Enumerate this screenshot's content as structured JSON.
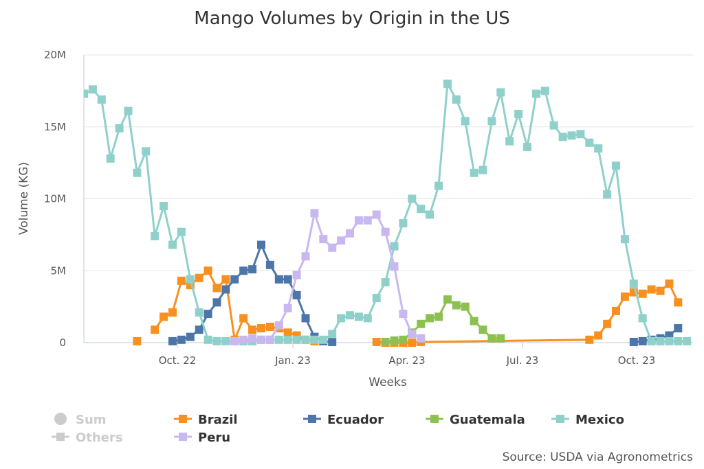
{
  "chart_data": {
    "type": "line",
    "title": "Mango Volumes by Origin in the US",
    "xlabel": "Weeks",
    "ylabel": "Volume (KG)",
    "ylim": [
      0,
      20000000
    ],
    "x_ticks": [
      "Oct. 22",
      "Jan. 23",
      "Apr. 23",
      "Jul. 23",
      "Oct. 23"
    ],
    "y_ticks": [
      "0",
      "5M",
      "10M",
      "15M",
      "20M"
    ],
    "grid": "horizontal",
    "legend_position": "bottom",
    "x_unit": "week index (week 0 = first week shown, Aug 2022)",
    "series": [
      {
        "name": "Brazil",
        "color": "#F7901E",
        "points": [
          [
            6,
            0.1
          ],
          [
            8,
            0.9
          ],
          [
            9,
            1.8
          ],
          [
            10,
            2.1
          ],
          [
            11,
            4.3
          ],
          [
            12,
            4.0
          ],
          [
            13,
            4.5
          ],
          [
            14,
            5.0
          ],
          [
            15,
            3.8
          ],
          [
            16,
            4.4
          ],
          [
            17,
            0.2
          ],
          [
            18,
            1.7
          ],
          [
            19,
            0.9
          ],
          [
            20,
            1.0
          ],
          [
            21,
            1.1
          ],
          [
            22,
            1.0
          ],
          [
            23,
            0.7
          ],
          [
            24,
            0.5
          ],
          [
            25,
            0.2
          ],
          [
            26,
            0.1
          ],
          [
            33,
            0.05
          ],
          [
            34,
            0.0
          ],
          [
            35,
            0.0
          ],
          [
            36,
            0.0
          ],
          [
            37,
            0.0
          ],
          [
            38,
            0.05
          ],
          [
            57,
            0.2
          ],
          [
            58,
            0.5
          ],
          [
            59,
            1.3
          ],
          [
            60,
            2.2
          ],
          [
            61,
            3.2
          ],
          [
            62,
            3.5
          ],
          [
            63,
            3.4
          ],
          [
            64,
            3.7
          ],
          [
            65,
            3.6
          ],
          [
            66,
            4.1
          ],
          [
            67,
            2.8
          ]
        ],
        "segments": [
          [
            0,
            0
          ],
          [
            1,
            19
          ],
          [
            20,
            36
          ]
        ]
      },
      {
        "name": "Ecuador",
        "color": "#4C76A8",
        "points": [
          [
            10,
            0.1
          ],
          [
            11,
            0.2
          ],
          [
            12,
            0.4
          ],
          [
            13,
            0.9
          ],
          [
            14,
            2.0
          ],
          [
            15,
            2.8
          ],
          [
            16,
            3.7
          ],
          [
            17,
            4.4
          ],
          [
            18,
            5.0
          ],
          [
            19,
            5.1
          ],
          [
            20,
            6.8
          ],
          [
            21,
            5.4
          ],
          [
            22,
            4.4
          ],
          [
            23,
            4.4
          ],
          [
            24,
            3.3
          ],
          [
            25,
            1.7
          ],
          [
            26,
            0.4
          ],
          [
            27,
            0.1
          ],
          [
            28,
            0.05
          ],
          [
            62,
            0.05
          ],
          [
            63,
            0.1
          ],
          [
            64,
            0.2
          ],
          [
            65,
            0.3
          ],
          [
            66,
            0.5
          ],
          [
            67,
            1.0
          ]
        ],
        "segments": [
          [
            0,
            18
          ],
          [
            19,
            24
          ]
        ]
      },
      {
        "name": "Guatemala",
        "color": "#8CC152",
        "points": [
          [
            34,
            0.05
          ],
          [
            35,
            0.15
          ],
          [
            36,
            0.2
          ],
          [
            37,
            0.7
          ],
          [
            38,
            1.3
          ],
          [
            39,
            1.7
          ],
          [
            40,
            1.8
          ],
          [
            41,
            3.0
          ],
          [
            42,
            2.6
          ],
          [
            43,
            2.5
          ],
          [
            44,
            1.5
          ],
          [
            45,
            0.9
          ],
          [
            46,
            0.3
          ],
          [
            47,
            0.3
          ]
        ],
        "segments": [
          [
            0,
            13
          ]
        ]
      },
      {
        "name": "Mexico",
        "color": "#8FD0CB",
        "points": [
          [
            0,
            17.3
          ],
          [
            1,
            17.6
          ],
          [
            2,
            16.9
          ],
          [
            3,
            12.8
          ],
          [
            4,
            14.9
          ],
          [
            5,
            16.1
          ],
          [
            6,
            11.8
          ],
          [
            7,
            13.3
          ],
          [
            8,
            7.4
          ],
          [
            9,
            9.5
          ],
          [
            10,
            6.8
          ],
          [
            11,
            7.7
          ],
          [
            12,
            4.4
          ],
          [
            13,
            2.1
          ],
          [
            14,
            0.2
          ],
          [
            15,
            0.1
          ],
          [
            16,
            0.1
          ],
          [
            17,
            0.1
          ],
          [
            18,
            0.1
          ],
          [
            19,
            0.1
          ],
          [
            20,
            0.2
          ],
          [
            21,
            0.2
          ],
          [
            22,
            0.2
          ],
          [
            23,
            0.2
          ],
          [
            24,
            0.2
          ],
          [
            25,
            0.2
          ],
          [
            26,
            0.2
          ],
          [
            27,
            0.2
          ],
          [
            28,
            0.6
          ],
          [
            29,
            1.7
          ],
          [
            30,
            1.9
          ],
          [
            31,
            1.8
          ],
          [
            32,
            1.7
          ],
          [
            33,
            3.1
          ],
          [
            34,
            4.2
          ],
          [
            35,
            6.7
          ],
          [
            36,
            8.3
          ],
          [
            37,
            10.0
          ],
          [
            38,
            9.3
          ],
          [
            39,
            8.9
          ],
          [
            40,
            10.9
          ],
          [
            41,
            18.0
          ],
          [
            42,
            16.9
          ],
          [
            43,
            15.4
          ],
          [
            44,
            11.8
          ],
          [
            45,
            12.0
          ],
          [
            46,
            15.4
          ],
          [
            47,
            17.4
          ],
          [
            48,
            14.0
          ],
          [
            49,
            15.9
          ],
          [
            50,
            13.6
          ],
          [
            51,
            17.3
          ],
          [
            52,
            17.5
          ],
          [
            53,
            15.1
          ],
          [
            54,
            14.3
          ],
          [
            55,
            14.4
          ],
          [
            56,
            14.5
          ],
          [
            57,
            13.9
          ],
          [
            58,
            13.5
          ],
          [
            59,
            10.3
          ],
          [
            60,
            12.3
          ],
          [
            61,
            7.2
          ],
          [
            62,
            4.1
          ],
          [
            63,
            1.7
          ],
          [
            64,
            0.1
          ],
          [
            65,
            0.1
          ],
          [
            66,
            0.1
          ],
          [
            67,
            0.1
          ],
          [
            68,
            0.1
          ]
        ],
        "segments": [
          [
            0,
            68
          ]
        ]
      },
      {
        "name": "Peru",
        "color": "#C9B8F0",
        "points": [
          [
            17,
            0.1
          ],
          [
            18,
            0.2
          ],
          [
            19,
            0.3
          ],
          [
            20,
            0.2
          ],
          [
            21,
            0.2
          ],
          [
            22,
            1.2
          ],
          [
            23,
            2.4
          ],
          [
            24,
            4.7
          ],
          [
            25,
            6.0
          ],
          [
            26,
            9.0
          ],
          [
            27,
            7.2
          ],
          [
            28,
            6.6
          ],
          [
            29,
            7.1
          ],
          [
            30,
            7.6
          ],
          [
            31,
            8.5
          ],
          [
            32,
            8.5
          ],
          [
            33,
            8.9
          ],
          [
            34,
            7.7
          ],
          [
            35,
            5.3
          ],
          [
            36,
            2.0
          ],
          [
            37,
            0.6
          ],
          [
            38,
            0.3
          ]
        ],
        "segments": [
          [
            0,
            21
          ]
        ]
      }
    ]
  },
  "legend": {
    "items": [
      {
        "label": "Sum",
        "color": "#CCCCCC",
        "marker": "circle",
        "disabled": true
      },
      {
        "label": "Brazil",
        "color": "#F7901E",
        "marker": "square",
        "disabled": false
      },
      {
        "label": "Ecuador",
        "color": "#4C76A8",
        "marker": "square",
        "disabled": false
      },
      {
        "label": "Guatemala",
        "color": "#8CC152",
        "marker": "square",
        "disabled": false
      },
      {
        "label": "Mexico",
        "color": "#8FD0CB",
        "marker": "square",
        "disabled": false
      },
      {
        "label": "Others",
        "color": "#CCCCCC",
        "marker": "square",
        "disabled": true
      },
      {
        "label": "Peru",
        "color": "#C9B8F0",
        "marker": "square",
        "disabled": false
      }
    ]
  },
  "source": "Source: USDA via Agronometrics"
}
